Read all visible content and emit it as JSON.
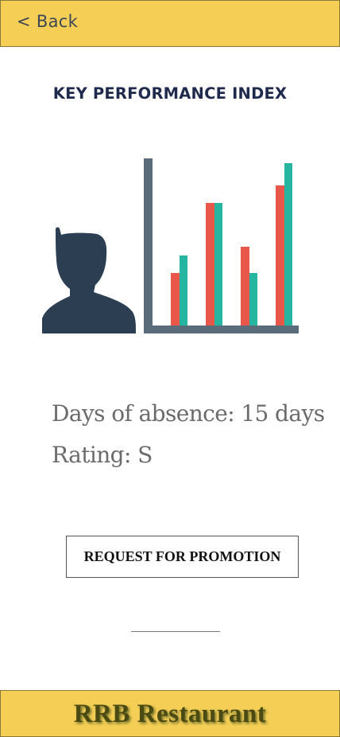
{
  "header": {
    "back_label": "< Back",
    "background_color": "#f5cf55"
  },
  "main": {
    "title": "KEY PERFORMANCE INDEX",
    "illustration": {
      "icons": [
        "user-silhouette-icon",
        "bar-chart-icon"
      ],
      "colors": {
        "person": "#2b3e52",
        "axis": "#5a6b7a",
        "bar_red": "#e8574a",
        "bar_teal": "#26b5a0"
      }
    },
    "absence_text": "Days of absence: 15 days",
    "rating_text": "Rating: S",
    "promotion_button_label": "REQUEST FOR PROMOTION"
  },
  "footer": {
    "brand": "RRB Restaurant",
    "background_color": "#f5cf55"
  }
}
